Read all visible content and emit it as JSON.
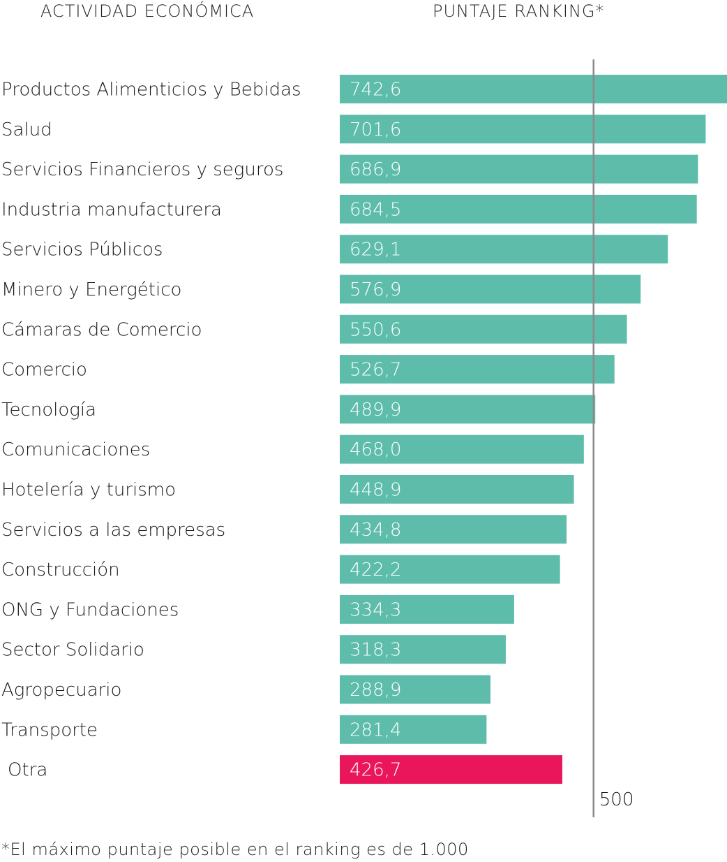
{
  "header": {
    "category_title": "ACTIVIDAD ECONÓMICA",
    "value_title": "PUNTAJE RANKING*"
  },
  "footnote": "*El máximo puntaje posible en el ranking es de 1.000",
  "colors": {
    "bar": "#5dbcaa",
    "highlight_bar": "#ea165c",
    "reference_line": "#8a8a8a",
    "text": "#1a1a1a",
    "bar_label": "#ffffff"
  },
  "chart_data": {
    "type": "bar",
    "orientation": "horizontal",
    "categories": [
      "Productos Alimenticios y Bebidas",
      "Salud",
      "Servicios Financieros y seguros",
      "Industria manufacturera",
      "Servicios Públicos",
      "Minero y Energético",
      "Cámaras de Comercio",
      "Comercio",
      "Tecnología",
      "Comunicaciones",
      "Hotelería y turismo",
      "Servicios a las empresas",
      "Construcción",
      "ONG y Fundaciones",
      "Sector Solidario",
      "Agropecuario",
      "Transporte",
      "Otra"
    ],
    "values": [
      742.6,
      701.6,
      686.9,
      684.5,
      629.1,
      576.9,
      550.6,
      526.7,
      489.9,
      468.0,
      448.9,
      434.8,
      422.2,
      334.3,
      318.3,
      288.9,
      281.4,
      426.7
    ],
    "value_labels": [
      "742,6",
      "701,6",
      "686,9",
      "684,5",
      "629,1",
      "576,9",
      "550,6",
      "526,7",
      "489,9",
      "468,0",
      "448,9",
      "434,8",
      "422,2",
      "334,3",
      "318,3",
      "288,9",
      "281,4",
      "426,7"
    ],
    "highlighted": [
      "Otra"
    ],
    "reference_line": {
      "value": 500,
      "label": "500"
    },
    "xlim": [
      0,
      742.6
    ],
    "grid": false,
    "legend": "none"
  }
}
